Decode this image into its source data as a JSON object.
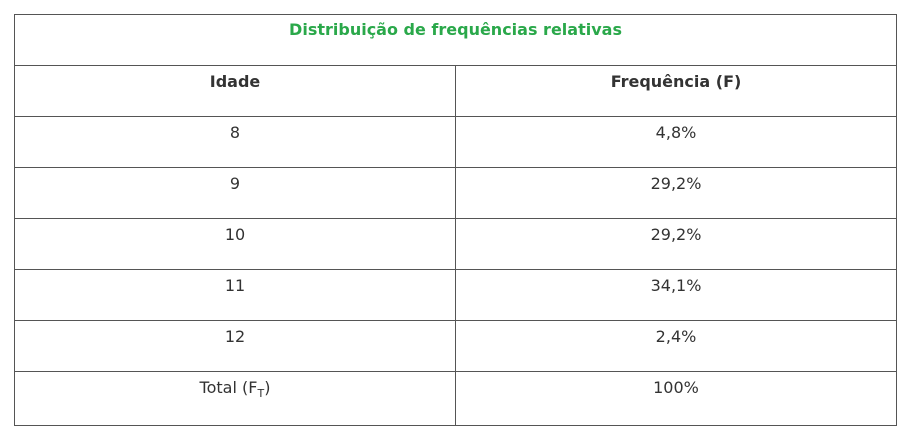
{
  "table": {
    "title": "Distribuição de frequências relativas",
    "headers": [
      "Idade",
      "Frequência (F)"
    ],
    "rows": [
      {
        "age": "8",
        "freq": "4,8%"
      },
      {
        "age": "9",
        "freq": "29,2%"
      },
      {
        "age": "10",
        "freq": "29,2%"
      },
      {
        "age": "11",
        "freq": "34,1%"
      },
      {
        "age": "12",
        "freq": "2,4%"
      }
    ],
    "total": {
      "label_main": "Total (F",
      "label_sub": "T",
      "label_close": ")",
      "value": "100%"
    }
  }
}
